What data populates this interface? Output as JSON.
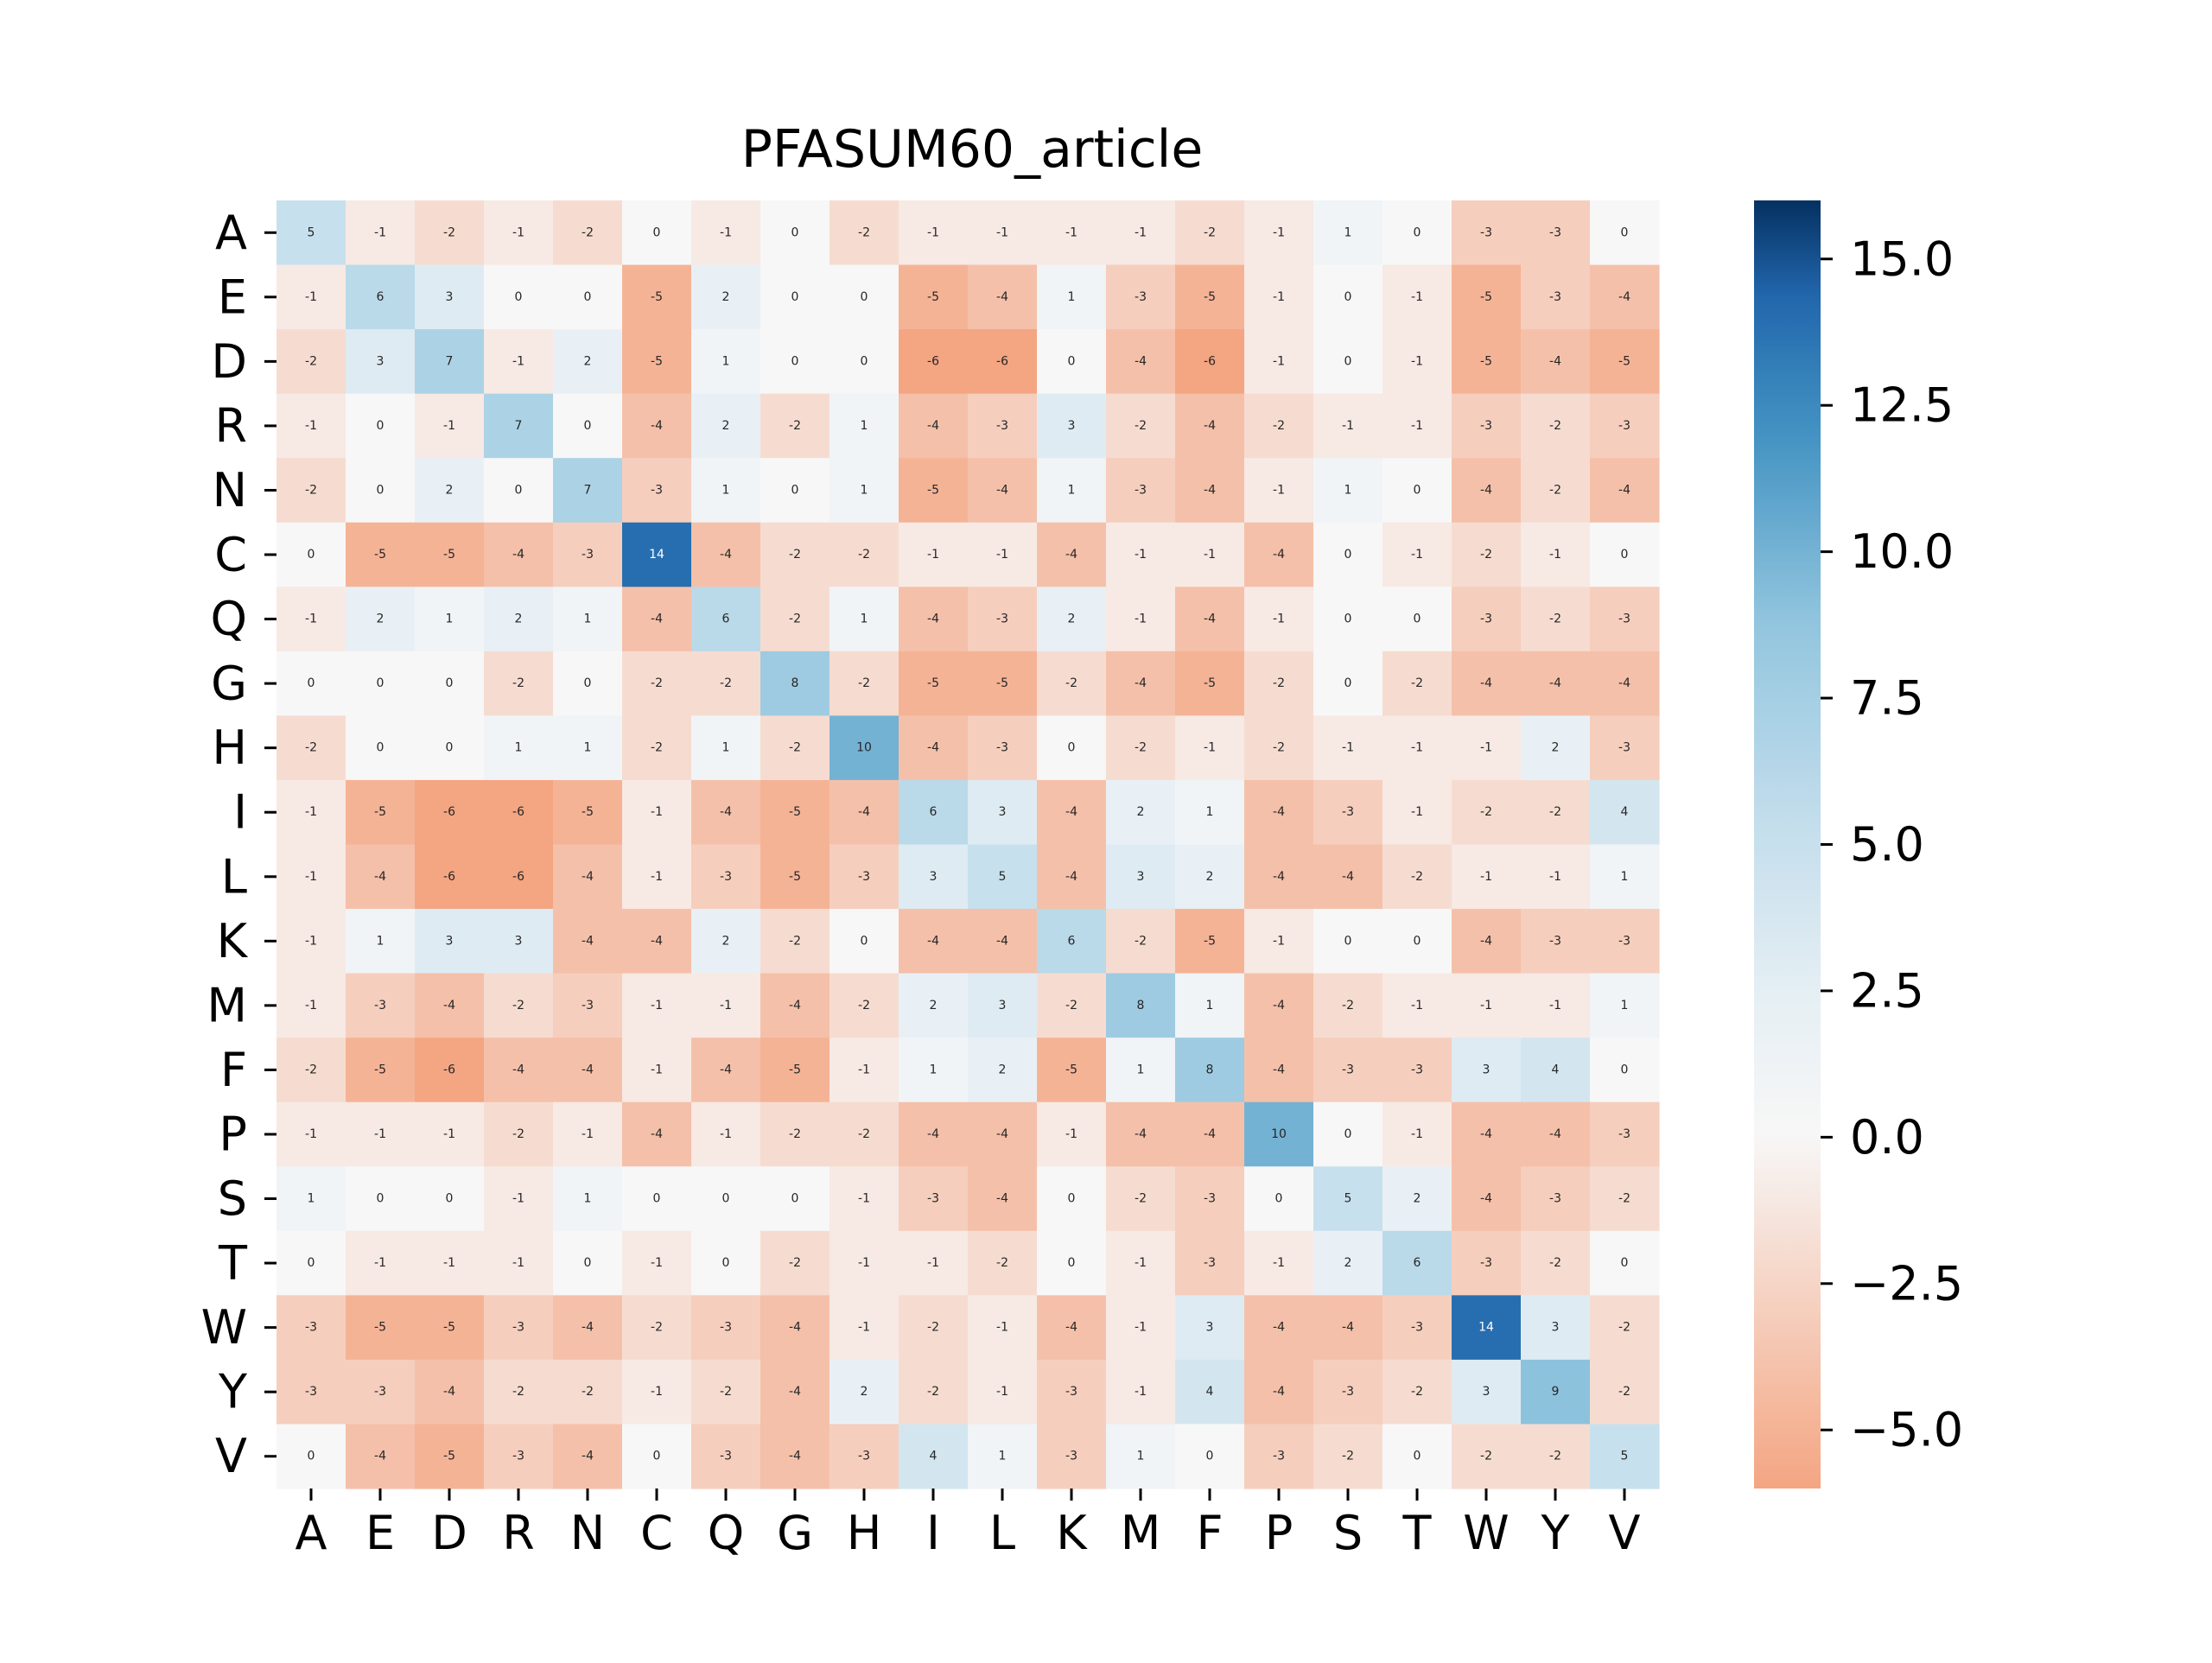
{
  "chart_data": {
    "type": "heatmap",
    "title": "PFASUM60_article",
    "xlabel": "",
    "ylabel": "",
    "x_categories": [
      "A",
      "E",
      "D",
      "R",
      "N",
      "C",
      "Q",
      "G",
      "H",
      "I",
      "L",
      "K",
      "M",
      "F",
      "P",
      "S",
      "T",
      "W",
      "Y",
      "V"
    ],
    "y_categories": [
      "A",
      "E",
      "D",
      "R",
      "N",
      "C",
      "Q",
      "G",
      "H",
      "I",
      "L",
      "K",
      "M",
      "F",
      "P",
      "S",
      "T",
      "W",
      "Y",
      "V"
    ],
    "values": [
      [
        5,
        -1,
        -2,
        -1,
        -2,
        0,
        -1,
        0,
        -2,
        -1,
        -1,
        -1,
        -1,
        -2,
        -1,
        1,
        0,
        -3,
        -3,
        0
      ],
      [
        -1,
        6,
        3,
        0,
        0,
        -5,
        2,
        0,
        0,
        -5,
        -4,
        1,
        -3,
        -5,
        -1,
        0,
        -1,
        -5,
        -3,
        -4
      ],
      [
        -2,
        3,
        7,
        -1,
        2,
        -5,
        1,
        0,
        0,
        -6,
        -6,
        0,
        -4,
        -6,
        -1,
        0,
        -1,
        -5,
        -4,
        -5
      ],
      [
        -1,
        0,
        -1,
        7,
        0,
        -4,
        2,
        -2,
        1,
        -4,
        -3,
        3,
        -2,
        -4,
        -2,
        -1,
        -1,
        -3,
        -2,
        -3
      ],
      [
        -2,
        0,
        2,
        0,
        7,
        -3,
        1,
        0,
        1,
        -5,
        -4,
        1,
        -3,
        -4,
        -1,
        1,
        0,
        -4,
        -2,
        -4
      ],
      [
        0,
        -5,
        -5,
        -4,
        -3,
        14,
        -4,
        -2,
        -2,
        -1,
        -1,
        -4,
        -1,
        -1,
        -4,
        0,
        -1,
        -2,
        -1,
        0
      ],
      [
        -1,
        2,
        1,
        2,
        1,
        -4,
        6,
        -2,
        1,
        -4,
        -3,
        2,
        -1,
        -4,
        -1,
        0,
        0,
        -3,
        -2,
        -3
      ],
      [
        0,
        0,
        0,
        -2,
        0,
        -2,
        -2,
        8,
        -2,
        -5,
        -5,
        -2,
        -4,
        -5,
        -2,
        0,
        -2,
        -4,
        -4,
        -4
      ],
      [
        -2,
        0,
        0,
        1,
        1,
        -2,
        1,
        -2,
        10,
        -4,
        -3,
        0,
        -2,
        -1,
        -2,
        -1,
        -1,
        -1,
        2,
        -3
      ],
      [
        -1,
        -5,
        -6,
        -6,
        -5,
        -1,
        -4,
        -5,
        -4,
        6,
        3,
        -4,
        2,
        1,
        -4,
        -3,
        -1,
        -2,
        -2,
        4
      ],
      [
        -1,
        -4,
        -6,
        -6,
        -4,
        -1,
        -3,
        -5,
        -3,
        3,
        5,
        -4,
        3,
        2,
        -4,
        -4,
        -2,
        -1,
        -1,
        1
      ],
      [
        -1,
        1,
        3,
        3,
        -4,
        -4,
        2,
        -2,
        0,
        -4,
        -4,
        6,
        -2,
        -5,
        -1,
        0,
        0,
        -4,
        -3,
        -3
      ],
      [
        -1,
        -3,
        -4,
        -2,
        -3,
        -1,
        -1,
        -4,
        -2,
        2,
        3,
        -2,
        8,
        1,
        -4,
        -2,
        -1,
        -1,
        -1,
        1
      ],
      [
        -2,
        -5,
        -6,
        -4,
        -4,
        -1,
        -4,
        -5,
        -1,
        1,
        2,
        -5,
        1,
        8,
        -4,
        -3,
        -3,
        3,
        4,
        0
      ],
      [
        -1,
        -1,
        -1,
        -2,
        -1,
        -4,
        -1,
        -2,
        -2,
        -4,
        -4,
        -1,
        -4,
        -4,
        10,
        0,
        -1,
        -4,
        -4,
        -3
      ],
      [
        1,
        0,
        0,
        -1,
        1,
        0,
        0,
        0,
        -1,
        -3,
        -4,
        0,
        -2,
        -3,
        0,
        5,
        2,
        -4,
        -3,
        -2
      ],
      [
        0,
        -1,
        -1,
        -1,
        0,
        -1,
        0,
        -2,
        -1,
        -1,
        -2,
        0,
        -1,
        -3,
        -1,
        2,
        6,
        -3,
        -2,
        0
      ],
      [
        -3,
        -5,
        -5,
        -3,
        -4,
        -2,
        -3,
        -4,
        -1,
        -2,
        -1,
        -4,
        -1,
        3,
        -4,
        -4,
        -3,
        14,
        3,
        -2
      ],
      [
        -3,
        -3,
        -4,
        -2,
        -2,
        -1,
        -2,
        -4,
        2,
        -2,
        -1,
        -3,
        -1,
        4,
        -4,
        -3,
        -2,
        3,
        9,
        -2
      ],
      [
        0,
        -4,
        -5,
        -3,
        -4,
        0,
        -3,
        -4,
        -3,
        4,
        1,
        -3,
        1,
        0,
        -3,
        -2,
        0,
        -2,
        -2,
        5
      ]
    ],
    "vmin": -6,
    "vmax": 16,
    "colormap": "RdBu (center 0)",
    "colorbar_ticks": [
      15.0,
      12.5,
      10.0,
      7.5,
      5.0,
      2.5,
      0.0,
      -2.5,
      -5.0
    ],
    "colorbar_tick_labels": [
      "15.0",
      "12.5",
      "10.0",
      "7.5",
      "5.0",
      "2.5",
      "0.0",
      "−2.5",
      "−5.0"
    ],
    "grid": false,
    "annotations": true
  }
}
